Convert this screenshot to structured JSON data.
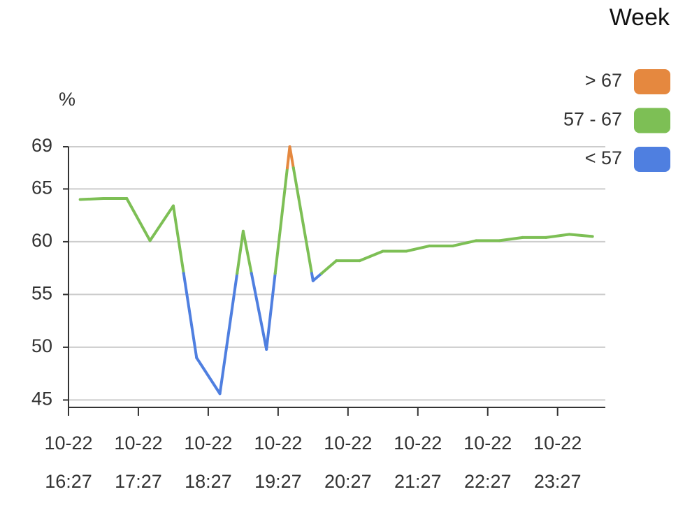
{
  "chart_data": {
    "type": "line",
    "title": "Week",
    "y_label": "%",
    "x": [
      "10-22 16:37",
      "10-22 16:57",
      "10-22 17:17",
      "10-22 17:37",
      "10-22 17:57",
      "10-22 18:17",
      "10-22 18:37",
      "10-22 18:57",
      "10-22 19:17",
      "10-22 19:37",
      "10-22 19:57",
      "10-22 20:17",
      "10-22 20:37",
      "10-22 20:57",
      "10-22 21:17",
      "10-22 21:37",
      "10-22 21:57",
      "10-22 22:17",
      "10-22 22:37",
      "10-22 22:57",
      "10-22 23:17",
      "10-22 23:37",
      "10-22 23:57"
    ],
    "values": [
      64.0,
      64.1,
      64.1,
      60.1,
      63.4,
      49.0,
      45.6,
      61.0,
      49.8,
      69.0,
      56.3,
      58.2,
      58.2,
      59.1,
      59.1,
      59.6,
      59.6,
      60.1,
      60.1,
      60.4,
      60.4,
      60.7,
      60.5
    ],
    "xlim": [
      "10-22 16:27",
      "10-23 00:08"
    ],
    "xticks": [
      "10-22 16:27",
      "10-22 17:27",
      "10-22 18:27",
      "10-22 19:27",
      "10-22 20:27",
      "10-22 21:27",
      "10-22 22:27",
      "10-22 23:27"
    ],
    "ylim": [
      44.3,
      69
    ],
    "yticks": [
      45,
      50,
      55,
      60,
      65,
      69
    ],
    "grid": true,
    "pieces": [
      {
        "label": "> 67",
        "min": 67,
        "color": "#e5883f"
      },
      {
        "label": "57 - 67",
        "min": 57,
        "max": 67,
        "color": "#7dbf55"
      },
      {
        "label": "< 57",
        "max": 57,
        "color": "#4f7fe0"
      }
    ]
  }
}
